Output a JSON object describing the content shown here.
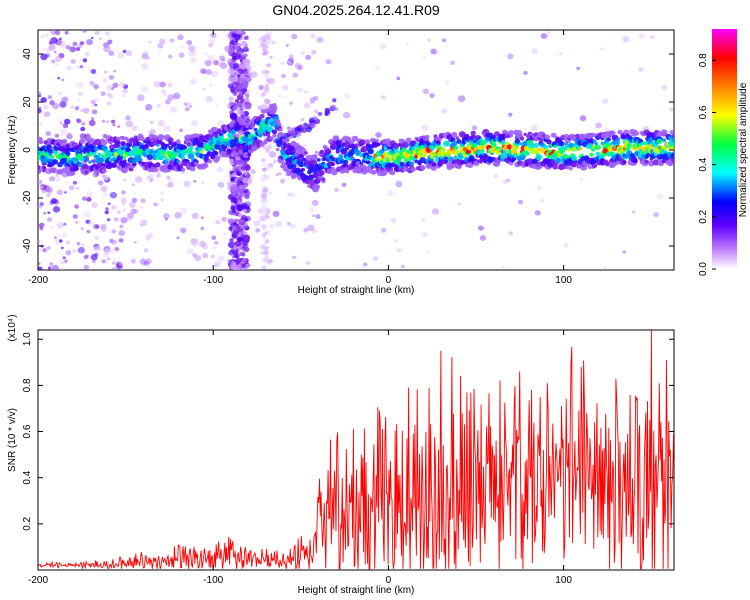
{
  "title": "GN04.2025.264.12.41.R09",
  "chart_data": [
    {
      "type": "heatmap",
      "xlabel": "Height of straight line (km)",
      "ylabel": "Frequency (Hz)",
      "xlim": [
        -200,
        163
      ],
      "ylim": [
        -50,
        50
      ],
      "xticks": [
        -200,
        -100,
        0,
        100
      ],
      "yticks": [
        -40,
        -20,
        0,
        20,
        40
      ],
      "ridge": {
        "x": [
          -200,
          -180,
          -160,
          -140,
          -120,
          -105,
          -95,
          -85,
          -80,
          -75,
          -70,
          -65,
          -60,
          -55,
          -50,
          -45,
          -42,
          -40,
          -35,
          -30,
          -20,
          0,
          20,
          40,
          60,
          80,
          100,
          120,
          140,
          163
        ],
        "y": [
          -2,
          -3,
          -2,
          -1,
          -2,
          0,
          4,
          6,
          3,
          8,
          10,
          12,
          -2,
          -4,
          -6,
          -9,
          -10,
          -8,
          -5,
          -2,
          -2,
          -3,
          -1,
          0,
          1,
          0,
          -1,
          0,
          1,
          1
        ]
      },
      "side_streak": {
        "x": [
          -60,
          -45,
          -30
        ],
        "y": [
          5,
          10,
          20
        ]
      },
      "colorbar": {
        "label": "Normalized spectral amplitude",
        "range": [
          0,
          0.92
        ],
        "ticks": [
          "0.0",
          "0.2",
          "0.4",
          "0.6",
          "0.8"
        ],
        "colors": [
          "#ffffff",
          "#8000ff",
          "#0000ff",
          "#00ffff",
          "#00ff00",
          "#ffff00",
          "#ff8000",
          "#ff0000",
          "#ff00ff"
        ]
      }
    },
    {
      "type": "line",
      "xlabel": "Height of straight line (km)",
      "ylabel": "SNR (10 * v/v)",
      "scale_label": "(x10⁴)",
      "xlim": [
        -200,
        163
      ],
      "ylim": [
        0.0,
        1.04
      ],
      "xticks": [
        -200,
        -100,
        0,
        100
      ],
      "yticks": [
        0.2,
        0.4,
        0.6,
        0.8,
        1.0
      ],
      "series": [
        {
          "name": "SNR",
          "color": "#ff0000",
          "x": [
            -200,
            -160,
            -140,
            -120,
            -100,
            -90,
            -80,
            -60,
            -45,
            -40,
            -30,
            -20,
            -10,
            0,
            10,
            20,
            30,
            40,
            60,
            80,
            100,
            120,
            140,
            150,
            160,
            163
          ],
          "base": [
            0.02,
            0.02,
            0.04,
            0.04,
            0.05,
            0.06,
            0.04,
            0.04,
            0.06,
            0.15,
            0.18,
            0.2,
            0.22,
            0.24,
            0.26,
            0.28,
            0.3,
            0.32,
            0.34,
            0.35,
            0.36,
            0.36,
            0.36,
            0.37,
            0.35,
            0.35
          ],
          "amp": [
            0.01,
            0.02,
            0.05,
            0.06,
            0.06,
            0.08,
            0.05,
            0.04,
            0.12,
            0.3,
            0.36,
            0.4,
            0.42,
            0.45,
            0.48,
            0.5,
            0.6,
            0.56,
            0.52,
            0.5,
            0.52,
            0.54,
            0.52,
            0.6,
            0.55,
            0.5
          ],
          "peaks": [
            {
              "x": 30,
              "y": 0.95
            },
            {
              "x": 150,
              "y": 1.04
            },
            {
              "x": 110,
              "y": 0.88
            },
            {
              "x": 75,
              "y": 0.86
            }
          ]
        }
      ]
    }
  ]
}
